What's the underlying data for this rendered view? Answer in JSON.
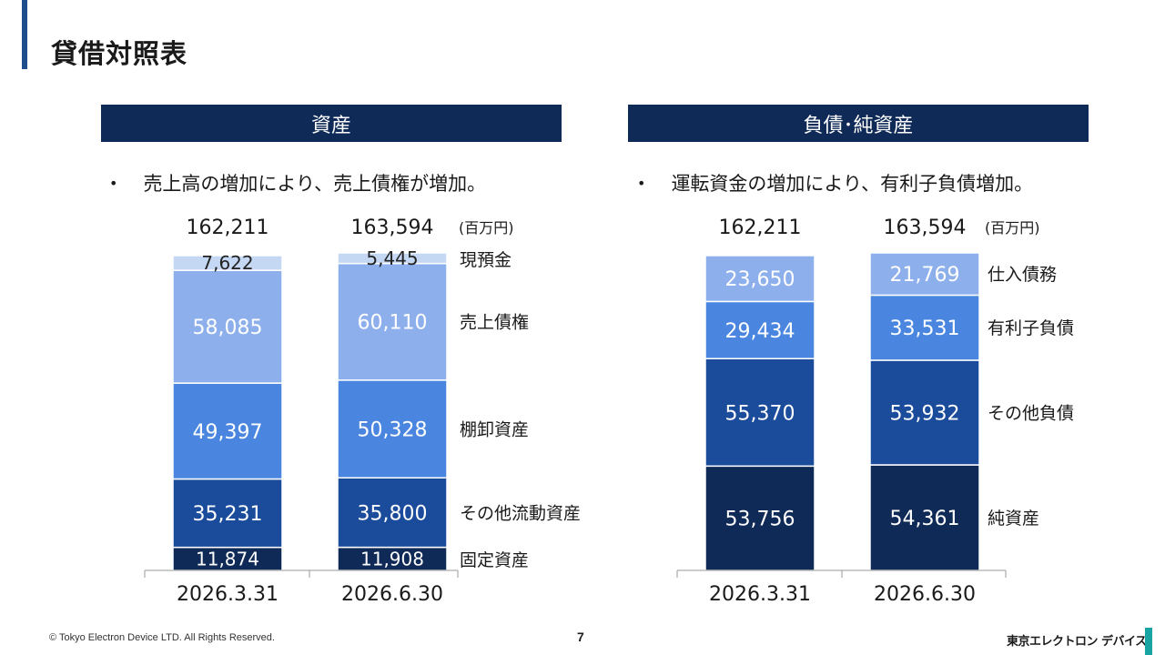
{
  "page_title": "貸借対照表",
  "sections": {
    "assets": {
      "header": "資産",
      "bullet": "売上高の増加により、売上債権が増加。"
    },
    "liabilities": {
      "header": "負債･純資産",
      "bullet": "運転資金の増加により、有利子負債増加。"
    }
  },
  "footer": {
    "copyright": "© Tokyo Electron Device LTD. All Rights Reserved.",
    "page_number": "7",
    "logo_text": "東京エレクトロン デバイス"
  },
  "colors": {
    "dark_navy": "#0f2a57",
    "navy": "#1b4c9b",
    "blue": "#4a86e0",
    "light_blue": "#8db0ec",
    "pale_blue": "#c5d8f3",
    "accent": "#1f4e8c",
    "logo_accent": "#1aa3a3"
  },
  "chart_data": [
    {
      "type": "bar",
      "stacked": true,
      "unit_label": "(百万円)",
      "categories": [
        "2026.3.31",
        "2026.6.30"
      ],
      "totals": [
        "162,211",
        "163,594"
      ],
      "series": [
        {
          "name": "固定資産",
          "values": [
            11874,
            11908
          ],
          "labels": [
            "11,874",
            "11,908"
          ],
          "color": "#0f2a57"
        },
        {
          "name": "その他流動資産",
          "values": [
            35231,
            35800
          ],
          "labels": [
            "35,231",
            "35,800"
          ],
          "color": "#1b4c9b"
        },
        {
          "name": "棚卸資産",
          "values": [
            49397,
            50328
          ],
          "labels": [
            "49,397",
            "50,328"
          ],
          "color": "#4a86e0"
        },
        {
          "name": "売上債権",
          "values": [
            58085,
            60110
          ],
          "labels": [
            "58,085",
            "60,110"
          ],
          "color": "#8db0ec"
        },
        {
          "name": "現預金",
          "values": [
            7622,
            5445
          ],
          "labels": [
            "7,622",
            "5,445"
          ],
          "color": "#c5d8f3"
        }
      ]
    },
    {
      "type": "bar",
      "stacked": true,
      "unit_label": "(百万円)",
      "categories": [
        "2026.3.31",
        "2026.6.30"
      ],
      "totals": [
        "162,211",
        "163,594"
      ],
      "series": [
        {
          "name": "純資産",
          "values": [
            53756,
            54361
          ],
          "labels": [
            "53,756",
            "54,361"
          ],
          "color": "#0f2a57"
        },
        {
          "name": "その他負債",
          "values": [
            55370,
            53932
          ],
          "labels": [
            "55,370",
            "53,932"
          ],
          "color": "#1b4c9b"
        },
        {
          "name": "有利子負債",
          "values": [
            29434,
            33531
          ],
          "labels": [
            "29,434",
            "33,531"
          ],
          "color": "#4a86e0"
        },
        {
          "name": "仕入債務",
          "values": [
            23650,
            21769
          ],
          "labels": [
            "23,650",
            "21,769"
          ],
          "color": "#8db0ec"
        }
      ]
    }
  ]
}
